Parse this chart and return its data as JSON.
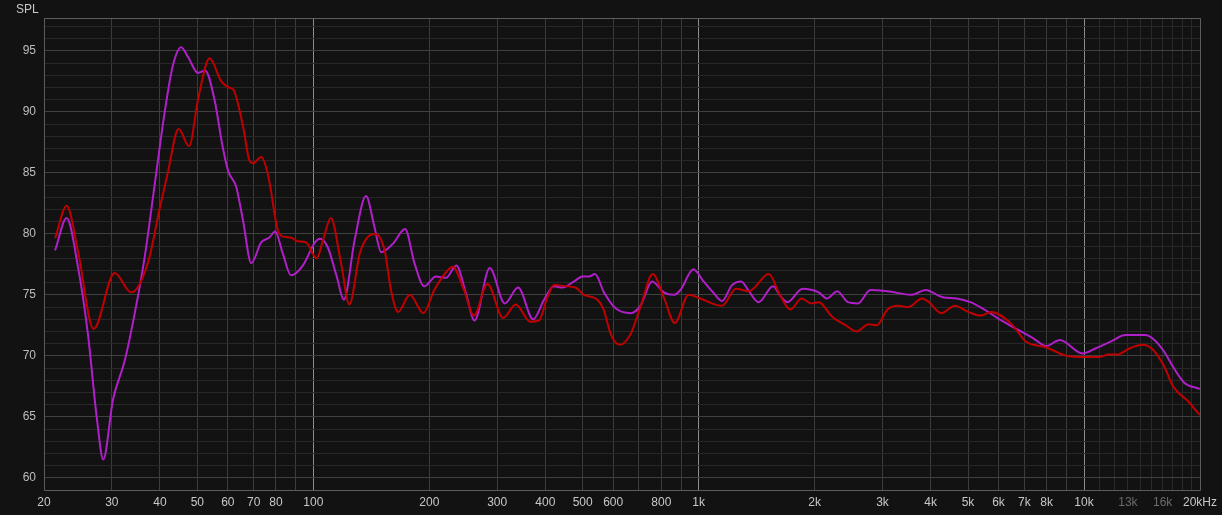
{
  "chart_data": {
    "type": "line",
    "ylabel": "SPL",
    "xlabel": "Hz",
    "log": "x",
    "grid": true,
    "legend": false,
    "xlim": [
      20,
      20000
    ],
    "xticks": [
      20,
      30,
      40,
      50,
      60,
      70,
      80,
      {
        "value": 90,
        "label": null
      },
      100,
      200,
      300,
      400,
      500,
      600,
      {
        "value": 700,
        "label": null
      },
      800,
      {
        "value": 900,
        "label": null
      },
      {
        "value": 1000,
        "label": "1k"
      },
      {
        "value": 2000,
        "label": "2k"
      },
      {
        "value": 3000,
        "label": "3k"
      },
      {
        "value": 4000,
        "label": "4k"
      },
      {
        "value": 5000,
        "label": "5k"
      },
      {
        "value": 6000,
        "label": "6k"
      },
      {
        "value": 7000,
        "label": "7k"
      },
      {
        "value": 8000,
        "label": "8k"
      },
      {
        "value": 9000,
        "label": null
      },
      {
        "value": 10000,
        "label": "10k"
      },
      {
        "value": 11000,
        "label": null
      },
      {
        "value": 12000,
        "label": null
      },
      {
        "value": 13000,
        "label": "13k"
      },
      {
        "value": 14000,
        "label": null
      },
      {
        "value": 15000,
        "label": null
      },
      {
        "value": 16000,
        "label": "16k"
      },
      {
        "value": 17000,
        "label": null
      },
      {
        "value": 18000,
        "label": null
      },
      {
        "value": 19000,
        "label": null
      },
      {
        "value": 20000,
        "label": "20k"
      }
    ],
    "ylim": [
      59,
      97.7
    ],
    "yticks": [
      60,
      {
        "value": 61,
        "label": null
      },
      {
        "value": 62,
        "label": null
      },
      {
        "value": 63,
        "label": null
      },
      {
        "value": 64,
        "label": null
      },
      65,
      {
        "value": 66,
        "label": null
      },
      {
        "value": 67,
        "label": null
      },
      {
        "value": 68,
        "label": null
      },
      {
        "value": 69,
        "label": null
      },
      70,
      {
        "value": 71,
        "label": null
      },
      {
        "value": 72,
        "label": null
      },
      {
        "value": 73,
        "label": null
      },
      {
        "value": 74,
        "label": null
      },
      75,
      {
        "value": 76,
        "label": null
      },
      {
        "value": 77,
        "label": null
      },
      {
        "value": 78,
        "label": null
      },
      {
        "value": 79,
        "label": null
      },
      80,
      {
        "value": 81,
        "label": null
      },
      {
        "value": 82,
        "label": null
      },
      {
        "value": 83,
        "label": null
      },
      {
        "value": 84,
        "label": null
      },
      85,
      {
        "value": 86,
        "label": null
      },
      {
        "value": 87,
        "label": null
      },
      {
        "value": 88,
        "label": null
      },
      {
        "value": 89,
        "label": null
      },
      90,
      {
        "value": 91,
        "label": null
      },
      {
        "value": 92,
        "label": null
      },
      {
        "value": 93,
        "label": null
      },
      {
        "value": 94,
        "label": null
      },
      95,
      {
        "value": 96,
        "label": null
      },
      {
        "value": 97,
        "label": null
      }
    ],
    "series": [
      {
        "color": "#c00000",
        "x": [
          21.4,
          22.9,
          24.5,
          26.9,
          30.5,
          33.7,
          37.2,
          40,
          41.9,
          44.7,
          47.6,
          50.2,
          53.8,
          57.7,
          60.4,
          62.1,
          65.7,
          68.3,
          69.9,
          73.2,
          76.2,
          80.9,
          83.3,
          87.5,
          91.1,
          95.7,
          102,
          106,
          111,
          118,
          124,
          132,
          138,
          145,
          153,
          159,
          166,
          178,
          193,
          206,
          223,
          230,
          246,
          261,
          283,
          311,
          335,
          366,
          385,
          405,
          421,
          456,
          479,
          504,
          546,
          568,
          591,
          624,
          666,
          706,
          760,
          812,
          867,
          942,
          1010,
          1150,
          1250,
          1350,
          1520,
          1630,
          1730,
          1850,
          1960,
          2050,
          2220,
          2410,
          2570,
          2760,
          2900,
          3090,
          3290,
          3500,
          3800,
          3960,
          4260,
          4620,
          5010,
          5390,
          5740,
          6490,
          7050,
          7970,
          9020,
          10000,
          10900,
          11600,
          12200,
          13100,
          14200,
          15100,
          16100,
          17100,
          18600,
          19900
        ],
        "values": [
          79.7,
          82.3,
          78.6,
          72.2,
          76.8,
          75.2,
          77.6,
          82.2,
          85.0,
          88.6,
          87.2,
          91.0,
          94.4,
          92.5,
          92.0,
          91.8,
          88.8,
          86.0,
          85.8,
          86.3,
          84.9,
          80.3,
          79.8,
          79.7,
          79.4,
          79.3,
          78.0,
          79.5,
          81.3,
          77.6,
          74.2,
          78.4,
          79.7,
          80.0,
          78.7,
          75.4,
          73.6,
          75.0,
          73.5,
          75.4,
          77.0,
          77.3,
          75.4,
          73.3,
          75.9,
          73.1,
          74.2,
          72.8,
          72.9,
          74.8,
          75.8,
          75.7,
          75.6,
          75.0,
          74.6,
          73.7,
          71.8,
          70.9,
          71.8,
          74.0,
          76.7,
          74.8,
          72.7,
          75.0,
          74.7,
          74.1,
          75.5,
          75.3,
          76.7,
          74.9,
          73.8,
          74.7,
          74.3,
          74.4,
          73.2,
          72.5,
          72.0,
          72.6,
          72.5,
          73.8,
          74.1,
          74.0,
          74.7,
          74.4,
          73.5,
          74.1,
          73.6,
          73.3,
          73.6,
          72.6,
          71.2,
          70.7,
          70.0,
          69.9,
          69.9,
          70.1,
          70.1,
          70.6,
          70.9,
          70.5,
          69.2,
          67.4,
          66.3,
          65.2
        ]
      },
      {
        "color": "#b01fc9",
        "x": [
          21.4,
          22.9,
          24.5,
          26,
          27.4,
          28.5,
          30.2,
          32.4,
          34.4,
          36.5,
          38.7,
          41.1,
          43.2,
          45.4,
          47.3,
          50.2,
          52.4,
          55.4,
          58.2,
          60.2,
          63,
          65.7,
          69,
          73.2,
          76.9,
          79.6,
          83.3,
          87.5,
          93.9,
          101,
          104,
          109,
          115,
          120,
          128,
          137,
          144,
          150,
          161,
          173,
          183,
          194,
          208,
          221,
          235,
          249,
          262,
          287,
          314,
          340,
          372,
          397,
          421,
          443,
          475,
          499,
          519,
          538,
          568,
          609,
          666,
          706,
          757,
          812,
          861,
          897,
          969,
          1030,
          1090,
          1150,
          1220,
          1290,
          1350,
          1430,
          1560,
          1630,
          1700,
          1860,
          2050,
          2150,
          2290,
          2440,
          2590,
          2790,
          3090,
          3570,
          3880,
          4300,
          4670,
          5070,
          5510,
          6100,
          6770,
          7420,
          7970,
          8660,
          9910,
          10700,
          11800,
          12800,
          14400,
          15100,
          16100,
          17100,
          18200,
          19900
        ],
        "values": [
          78.7,
          81.3,
          77.3,
          71.8,
          65.0,
          61.5,
          66.4,
          69.6,
          73.5,
          78.1,
          83.9,
          89.9,
          93.8,
          95.3,
          94.5,
          93.2,
          93.4,
          91.0,
          87.1,
          85.1,
          83.9,
          81.1,
          77.6,
          79.3,
          79.7,
          80.2,
          78.4,
          76.6,
          77.4,
          79.3,
          79.6,
          78.9,
          76.5,
          74.6,
          79.5,
          83.1,
          80.6,
          78.5,
          79.2,
          80.4,
          77.6,
          75.7,
          76.5,
          76.4,
          77.4,
          75.1,
          72.9,
          77.2,
          74.3,
          75.6,
          73.0,
          74.6,
          75.7,
          75.6,
          76.1,
          76.5,
          76.5,
          76.7,
          75.2,
          73.9,
          73.5,
          74.1,
          76.1,
          75.2,
          75.0,
          75.4,
          77.1,
          76.1,
          75.2,
          74.5,
          75.8,
          76.1,
          75.3,
          74.4,
          75.7,
          74.9,
          74.4,
          75.5,
          75.2,
          74.7,
          75.3,
          74.4,
          74.3,
          75.4,
          75.3,
          75.0,
          75.4,
          74.8,
          74.7,
          74.4,
          73.8,
          72.9,
          72.1,
          71.4,
          70.8,
          71.3,
          70.2,
          70.6,
          71.2,
          71.7,
          71.7,
          71.4,
          70.4,
          69.0,
          67.8,
          67.3
        ]
      }
    ]
  }
}
